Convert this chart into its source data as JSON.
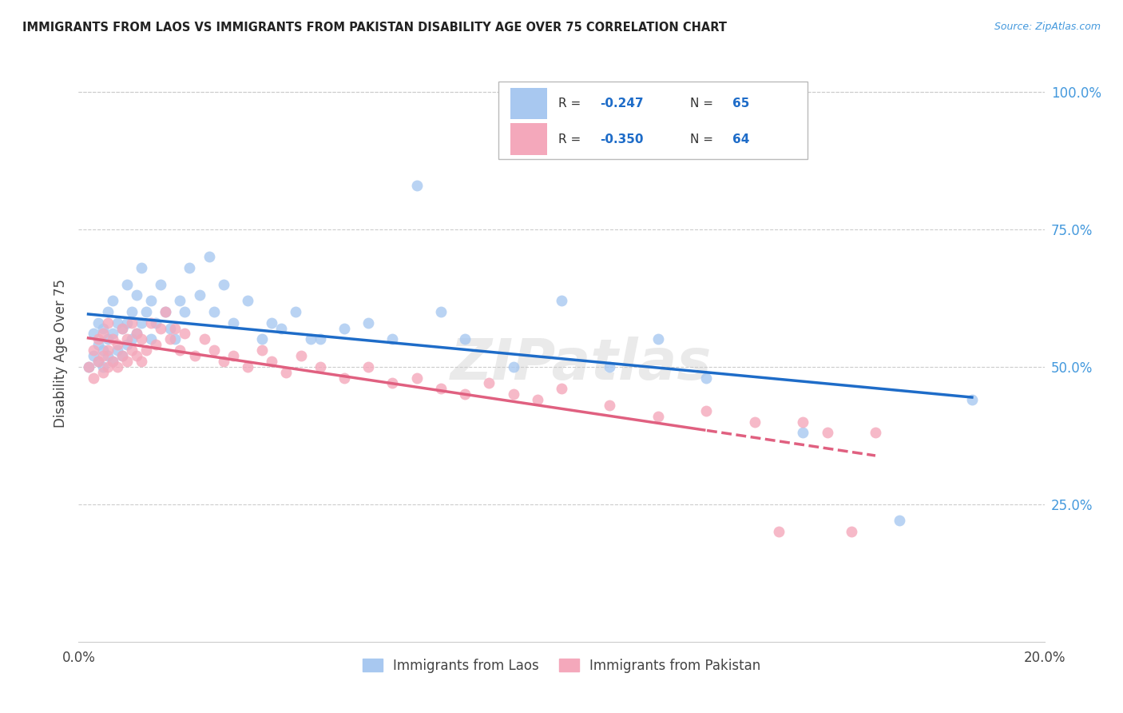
{
  "title": "IMMIGRANTS FROM LAOS VS IMMIGRANTS FROM PAKISTAN DISABILITY AGE OVER 75 CORRELATION CHART",
  "source": "Source: ZipAtlas.com",
  "ylabel": "Disability Age Over 75",
  "xlim": [
    0.0,
    0.2
  ],
  "ylim": [
    0.0,
    1.05
  ],
  "legend_blue_r": "-0.247",
  "legend_blue_n": "65",
  "legend_pink_r": "-0.350",
  "legend_pink_n": "64",
  "color_blue": "#A8C8F0",
  "color_pink": "#F4A8BB",
  "color_blue_line": "#1E6CC8",
  "color_pink_line": "#E06080",
  "color_right_axis": "#4499DD",
  "color_title": "#222222",
  "watermark": "ZIPatlas",
  "grid_color": "#CCCCCC",
  "laos_x": [
    0.002,
    0.003,
    0.003,
    0.004,
    0.004,
    0.004,
    0.005,
    0.005,
    0.005,
    0.006,
    0.006,
    0.006,
    0.007,
    0.007,
    0.007,
    0.008,
    0.008,
    0.009,
    0.009,
    0.01,
    0.01,
    0.01,
    0.011,
    0.011,
    0.012,
    0.012,
    0.013,
    0.013,
    0.014,
    0.015,
    0.015,
    0.016,
    0.017,
    0.018,
    0.019,
    0.02,
    0.021,
    0.022,
    0.023,
    0.025,
    0.027,
    0.028,
    0.03,
    0.032,
    0.035,
    0.038,
    0.04,
    0.042,
    0.045,
    0.048,
    0.05,
    0.055,
    0.06,
    0.065,
    0.07,
    0.075,
    0.08,
    0.09,
    0.1,
    0.11,
    0.12,
    0.13,
    0.15,
    0.17,
    0.185
  ],
  "laos_y": [
    0.5,
    0.52,
    0.56,
    0.51,
    0.54,
    0.58,
    0.5,
    0.53,
    0.57,
    0.52,
    0.55,
    0.6,
    0.51,
    0.56,
    0.62,
    0.53,
    0.58,
    0.52,
    0.57,
    0.54,
    0.58,
    0.65,
    0.55,
    0.6,
    0.56,
    0.63,
    0.58,
    0.68,
    0.6,
    0.55,
    0.62,
    0.58,
    0.65,
    0.6,
    0.57,
    0.55,
    0.62,
    0.6,
    0.68,
    0.63,
    0.7,
    0.6,
    0.65,
    0.58,
    0.62,
    0.55,
    0.58,
    0.57,
    0.6,
    0.55,
    0.55,
    0.57,
    0.58,
    0.55,
    0.83,
    0.6,
    0.55,
    0.5,
    0.62,
    0.5,
    0.55,
    0.48,
    0.38,
    0.22,
    0.44
  ],
  "pakistan_x": [
    0.002,
    0.003,
    0.003,
    0.004,
    0.004,
    0.005,
    0.005,
    0.005,
    0.006,
    0.006,
    0.006,
    0.007,
    0.007,
    0.008,
    0.008,
    0.009,
    0.009,
    0.01,
    0.01,
    0.011,
    0.011,
    0.012,
    0.012,
    0.013,
    0.013,
    0.014,
    0.015,
    0.016,
    0.017,
    0.018,
    0.019,
    0.02,
    0.021,
    0.022,
    0.024,
    0.026,
    0.028,
    0.03,
    0.032,
    0.035,
    0.038,
    0.04,
    0.043,
    0.046,
    0.05,
    0.055,
    0.06,
    0.065,
    0.07,
    0.075,
    0.08,
    0.085,
    0.09,
    0.095,
    0.1,
    0.11,
    0.12,
    0.13,
    0.14,
    0.145,
    0.15,
    0.155,
    0.16,
    0.165
  ],
  "pakistan_y": [
    0.5,
    0.48,
    0.53,
    0.51,
    0.55,
    0.49,
    0.52,
    0.56,
    0.5,
    0.53,
    0.58,
    0.51,
    0.55,
    0.5,
    0.54,
    0.52,
    0.57,
    0.51,
    0.55,
    0.53,
    0.58,
    0.52,
    0.56,
    0.51,
    0.55,
    0.53,
    0.58,
    0.54,
    0.57,
    0.6,
    0.55,
    0.57,
    0.53,
    0.56,
    0.52,
    0.55,
    0.53,
    0.51,
    0.52,
    0.5,
    0.53,
    0.51,
    0.49,
    0.52,
    0.5,
    0.48,
    0.5,
    0.47,
    0.48,
    0.46,
    0.45,
    0.47,
    0.45,
    0.44,
    0.46,
    0.43,
    0.41,
    0.42,
    0.4,
    0.2,
    0.4,
    0.38,
    0.2,
    0.38
  ]
}
